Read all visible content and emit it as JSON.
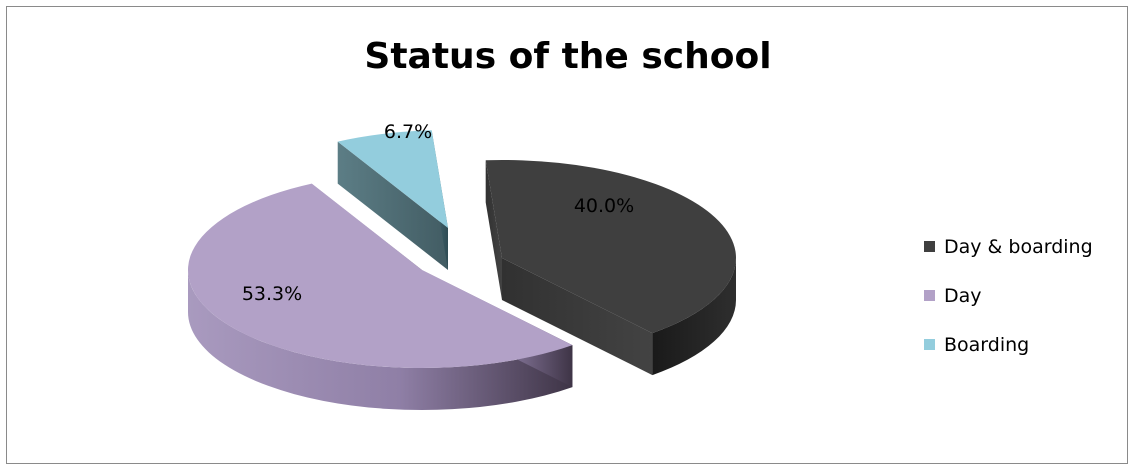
{
  "chart_data": {
    "type": "pie",
    "title": "Status of the school",
    "categories": [
      "Day & boarding",
      "Day",
      "Boarding"
    ],
    "values": [
      40.0,
      53.3,
      6.7
    ],
    "data_labels": [
      "40.0%",
      "53.3%",
      "6.7%"
    ],
    "colors": [
      "#3f3f3f",
      "#b2a1c7",
      "#93cddd"
    ],
    "legend_position": "right",
    "style": "3d-exploded"
  }
}
